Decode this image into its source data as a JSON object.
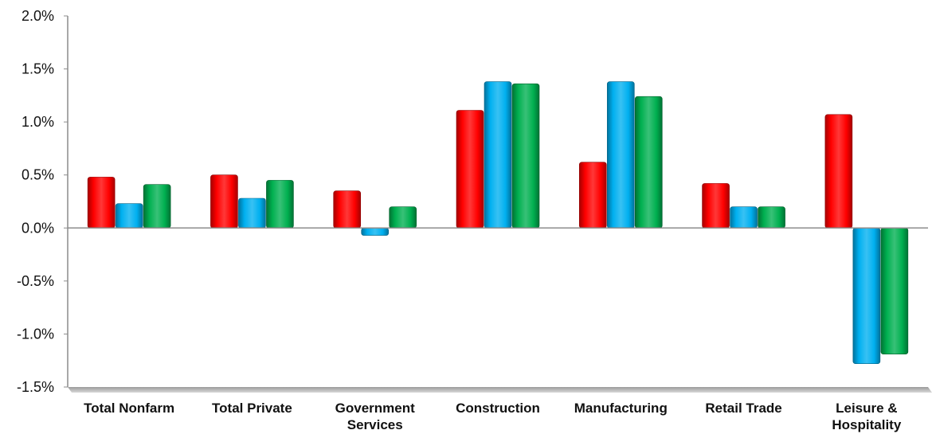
{
  "chart_data": {
    "type": "bar",
    "title": "",
    "xlabel": "",
    "ylabel": "",
    "ylim": [
      -1.5,
      2.0
    ],
    "yticks": [
      2.0,
      1.5,
      1.0,
      0.5,
      0.0,
      -0.5,
      -1.0,
      -1.5
    ],
    "ytick_labels": [
      "2.0%",
      "1.5%",
      "1.0%",
      "0.5%",
      "0.0%",
      "-0.5%",
      "-1.0%",
      "-1.5%"
    ],
    "grid": false,
    "legend": "none",
    "categories": [
      [
        "Total Nonfarm"
      ],
      [
        "Total Private"
      ],
      [
        "Government",
        "Services"
      ],
      [
        "Construction"
      ],
      [
        "Manufacturing"
      ],
      [
        "Retail Trade"
      ],
      [
        "Leisure &",
        "Hospitality"
      ]
    ],
    "series": [
      {
        "color": "#ff0000",
        "values": [
          0.48,
          0.5,
          0.35,
          1.11,
          0.62,
          0.42,
          1.07
        ]
      },
      {
        "color": "#00b0f0",
        "values": [
          0.23,
          0.28,
          -0.07,
          1.38,
          1.38,
          0.2,
          -1.28
        ]
      },
      {
        "color": "#00b050",
        "values": [
          0.41,
          0.45,
          0.2,
          1.36,
          1.24,
          0.2,
          -1.19
        ]
      }
    ]
  }
}
